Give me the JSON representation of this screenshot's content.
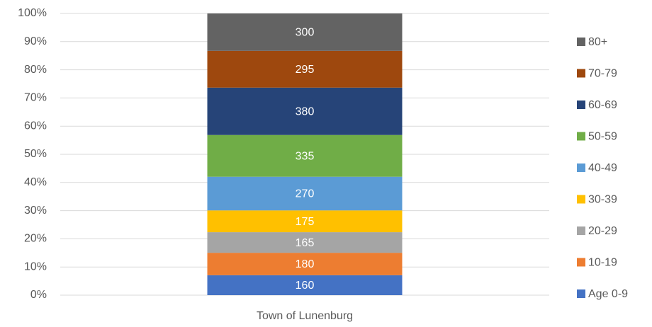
{
  "chart_data": {
    "type": "bar",
    "stacking": "percent",
    "categories": [
      "Town of Lunenburg"
    ],
    "series": [
      {
        "name": "Age 0-9",
        "color": "#4472c4",
        "values": [
          160
        ]
      },
      {
        "name": "10-19",
        "color": "#ed7d31",
        "values": [
          180
        ]
      },
      {
        "name": "20-29",
        "color": "#a5a5a5",
        "values": [
          165
        ]
      },
      {
        "name": "30-39",
        "color": "#ffc000",
        "values": [
          175
        ]
      },
      {
        "name": "40-49",
        "color": "#5b9bd5",
        "values": [
          270
        ]
      },
      {
        "name": "50-59",
        "color": "#70ad47",
        "values": [
          335
        ]
      },
      {
        "name": "60-69",
        "color": "#264478",
        "values": [
          380
        ]
      },
      {
        "name": "70-79",
        "color": "#9e480e",
        "values": [
          295
        ]
      },
      {
        "name": "80+",
        "color": "#636363",
        "values": [
          300
        ]
      }
    ],
    "ylim": [
      0,
      100
    ],
    "yticks": [
      {
        "value": 0,
        "label": "0%"
      },
      {
        "value": 10,
        "label": "10%"
      },
      {
        "value": 20,
        "label": "20%"
      },
      {
        "value": 30,
        "label": "30%"
      },
      {
        "value": 40,
        "label": "40%"
      },
      {
        "value": 50,
        "label": "50%"
      },
      {
        "value": 60,
        "label": "60%"
      },
      {
        "value": 70,
        "label": "70%"
      },
      {
        "value": 80,
        "label": "80%"
      },
      {
        "value": 90,
        "label": "90%"
      },
      {
        "value": 100,
        "label": "100%"
      }
    ],
    "grid": true,
    "legend": "right"
  }
}
